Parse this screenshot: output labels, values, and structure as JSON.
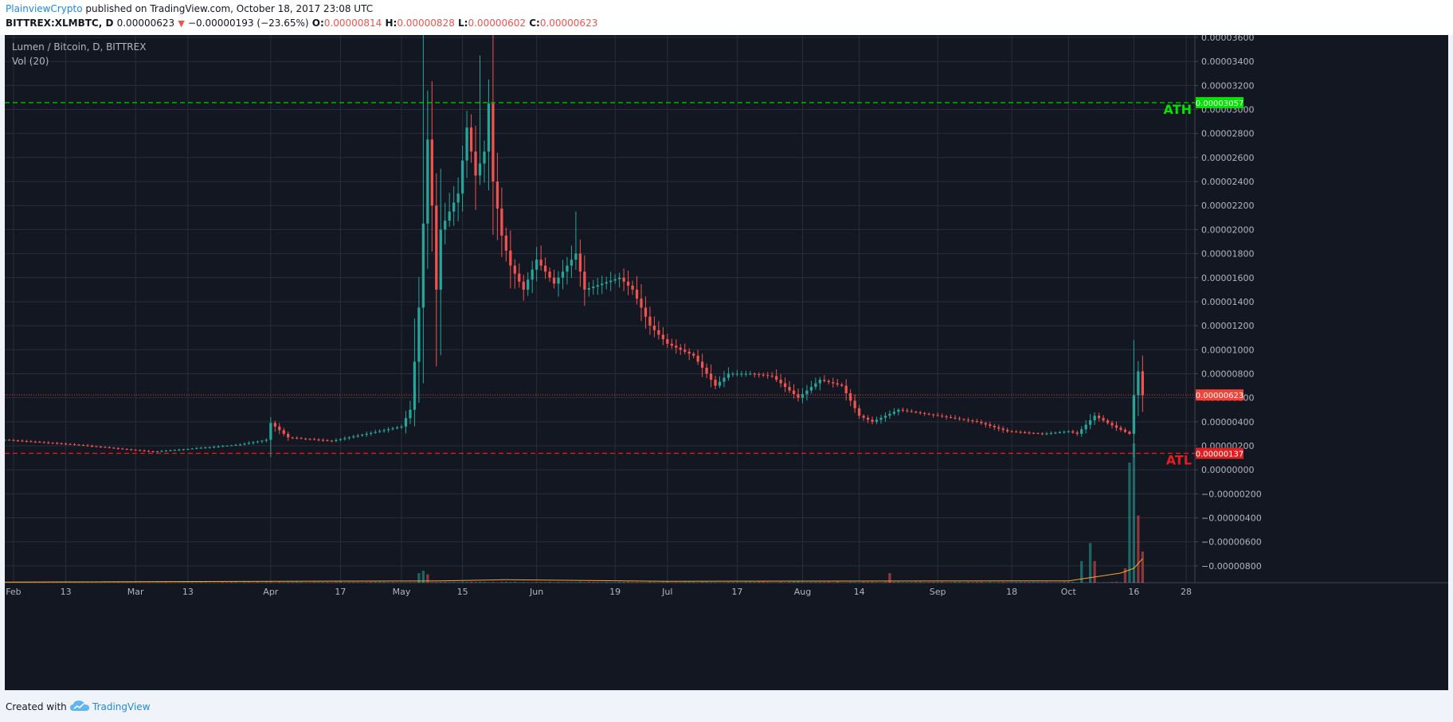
{
  "header": {
    "author": "PlainviewCrypto",
    "published_text": " published on TradingView.com, October 18, 2017 23:08 UTC",
    "symbol": "BITTREX:XLMBTC, D",
    "last": "0.00000623",
    "change": "−0.00000193 (−23.65%)",
    "o_label": "O:",
    "o_value": "0.00000814",
    "h_label": "H:",
    "h_value": "0.00000828",
    "l_label": "L:",
    "l_value": "0.00000602",
    "c_label": "C:",
    "c_value": "0.00000623",
    "down_arrow": "▼"
  },
  "legend": {
    "series_title": "Lumen / Bitcoin, D, BITTREX",
    "indicator": "Vol (20)"
  },
  "footer": {
    "created_with": "Created with",
    "brand": "TradingView"
  },
  "chart_data": {
    "type": "candlestick",
    "symbol": "XLMBTC",
    "y_ticks": [
      "0.00003600",
      "0.00003400",
      "0.00003200",
      "0.00003000",
      "0.00002800",
      "0.00002600",
      "0.00002400",
      "0.00002200",
      "0.00002000",
      "0.00001800",
      "0.00001600",
      "0.00001400",
      "0.00001200",
      "0.00001000",
      "0.00000800",
      "0.00000600",
      "0.00000400",
      "0.00000200",
      "0.00000000",
      "−0.00000200",
      "−0.00000400",
      "−0.00000600",
      "−0.00000800"
    ],
    "ylim": [
      -9.4e-06,
      3.62e-05
    ],
    "x_ticks": [
      {
        "label": "Feb",
        "date": "2017-02-01"
      },
      {
        "label": "13",
        "date": "2017-02-13"
      },
      {
        "label": "Mar",
        "date": "2017-03-01"
      },
      {
        "label": "13",
        "date": "2017-03-13"
      },
      {
        "label": "Apr",
        "date": "2017-04-01"
      },
      {
        "label": "17",
        "date": "2017-04-17"
      },
      {
        "label": "May",
        "date": "2017-05-01"
      },
      {
        "label": "15",
        "date": "2017-05-15"
      },
      {
        "label": "Jun",
        "date": "2017-06-01"
      },
      {
        "label": "19",
        "date": "2017-06-19"
      },
      {
        "label": "Jul",
        "date": "2017-07-01"
      },
      {
        "label": "17",
        "date": "2017-07-17"
      },
      {
        "label": "Aug",
        "date": "2017-08-01"
      },
      {
        "label": "14",
        "date": "2017-08-14"
      },
      {
        "label": "Sep",
        "date": "2017-09-01"
      },
      {
        "label": "18",
        "date": "2017-09-18"
      },
      {
        "label": "Oct",
        "date": "2017-10-01"
      },
      {
        "label": "16",
        "date": "2017-10-16"
      },
      {
        "label": "28",
        "date": "2017-10-28"
      }
    ],
    "x_range": [
      "2017-01-30",
      "2017-10-30"
    ],
    "key_points": [
      [
        "2017-01-30",
        2.5e-06
      ],
      [
        "2017-02-15",
        2.1e-06
      ],
      [
        "2017-03-05",
        1.5e-06
      ],
      [
        "2017-03-25",
        2.1e-06
      ],
      [
        "2017-03-31",
        2.5e-06
      ],
      [
        "2017-04-01",
        3.9e-06
      ],
      [
        "2017-04-05",
        2.7e-06
      ],
      [
        "2017-04-15",
        2.4e-06
      ],
      [
        "2017-05-01",
        3.6e-06
      ],
      [
        "2017-05-03",
        5e-06
      ],
      [
        "2017-05-04",
        9e-06
      ],
      [
        "2017-05-05",
        1.35e-05
      ],
      [
        "2017-05-06",
        2.05e-05
      ],
      [
        "2017-05-07",
        2.75e-05
      ],
      [
        "2017-05-08",
        2.2e-05
      ],
      [
        "2017-05-09",
        1.5e-05
      ],
      [
        "2017-05-10",
        2e-05
      ],
      [
        "2017-05-12",
        2.15e-05
      ],
      [
        "2017-05-14",
        2.3e-05
      ],
      [
        "2017-05-16",
        2.85e-05
      ],
      [
        "2017-05-18",
        2.45e-05
      ],
      [
        "2017-05-20",
        2.65e-05
      ],
      [
        "2017-05-21",
        3.05e-05
      ],
      [
        "2017-05-22",
        2.4e-05
      ],
      [
        "2017-05-24",
        1.95e-05
      ],
      [
        "2017-05-26",
        1.7e-05
      ],
      [
        "2017-05-29",
        1.5e-05
      ],
      [
        "2017-06-01",
        1.75e-05
      ],
      [
        "2017-06-05",
        1.55e-05
      ],
      [
        "2017-06-10",
        1.8e-05
      ],
      [
        "2017-06-12",
        1.5e-05
      ],
      [
        "2017-06-20",
        1.6e-05
      ],
      [
        "2017-06-23",
        1.5e-05
      ],
      [
        "2017-06-27",
        1.2e-05
      ],
      [
        "2017-07-01",
        1.05e-05
      ],
      [
        "2017-07-07",
        9.5e-06
      ],
      [
        "2017-07-12",
        7e-06
      ],
      [
        "2017-07-15",
        8e-06
      ],
      [
        "2017-07-20",
        8e-06
      ],
      [
        "2017-07-25",
        7.8e-06
      ],
      [
        "2017-07-31",
        6e-06
      ],
      [
        "2017-08-05",
        7.5e-06
      ],
      [
        "2017-08-10",
        7e-06
      ],
      [
        "2017-08-14",
        4.5e-06
      ],
      [
        "2017-08-17",
        4e-06
      ],
      [
        "2017-08-23",
        5e-06
      ],
      [
        "2017-09-01",
        4.5e-06
      ],
      [
        "2017-09-10",
        4e-06
      ],
      [
        "2017-09-17",
        3.2e-06
      ],
      [
        "2017-09-25",
        3e-06
      ],
      [
        "2017-10-01",
        3.2e-06
      ],
      [
        "2017-10-03",
        3e-06
      ],
      [
        "2017-10-07",
        4.5e-06
      ],
      [
        "2017-10-12",
        3.5e-06
      ],
      [
        "2017-10-15",
        3e-06
      ],
      [
        "2017-10-16",
        6.2e-06
      ],
      [
        "2017-10-17",
        8.2e-06
      ],
      [
        "2017-10-18",
        6.2e-06
      ]
    ],
    "wick_spikes": [
      {
        "date": "2017-05-06",
        "high": 3.62e-05
      },
      {
        "date": "2017-05-19",
        "high": 3.45e-05
      },
      {
        "date": "2017-05-21",
        "high": 3.25e-05
      },
      {
        "date": "2017-06-10",
        "high": 2.15e-05
      },
      {
        "date": "2017-10-16",
        "high": 1.08e-05
      }
    ],
    "volume": {
      "zero_value": -9.4e-06,
      "bars": [
        {
          "date": "2017-05-05",
          "height": 8e-07,
          "up": true
        },
        {
          "date": "2017-05-06",
          "height": 1e-06,
          "up": true
        },
        {
          "date": "2017-05-07",
          "height": 7e-07,
          "up": false
        },
        {
          "date": "2017-08-21",
          "height": 8e-07,
          "up": false
        },
        {
          "date": "2017-10-04",
          "height": 1.8e-06,
          "up": true
        },
        {
          "date": "2017-10-06",
          "height": 3.3e-06,
          "up": true
        },
        {
          "date": "2017-10-07",
          "height": 1.8e-06,
          "up": false
        },
        {
          "date": "2017-10-14",
          "height": 1.2e-06,
          "up": false
        },
        {
          "date": "2017-10-15",
          "height": 1e-05,
          "up": true
        },
        {
          "date": "2017-10-16",
          "height": 1.16e-05,
          "up": true
        },
        {
          "date": "2017-10-17",
          "height": 5.6e-06,
          "up": false
        },
        {
          "date": "2017-10-18",
          "height": 2.6e-06,
          "up": false
        }
      ]
    },
    "lines": [
      {
        "label": "ATH",
        "value": 3.057e-05,
        "tag": "0.00003057",
        "color": "#00e400"
      },
      {
        "label": "ATL",
        "value": 1.37e-06,
        "tag": "0.00000137",
        "color": "#e02020"
      }
    ],
    "last_price": {
      "value": 6.23e-06,
      "tag": "0.00000623",
      "color": "#f44336"
    },
    "colors": {
      "up": "#26a69a",
      "down": "#ef5350",
      "grid": "#2a2e39",
      "axis_text": "#b2b5be",
      "background": "#131722"
    }
  }
}
